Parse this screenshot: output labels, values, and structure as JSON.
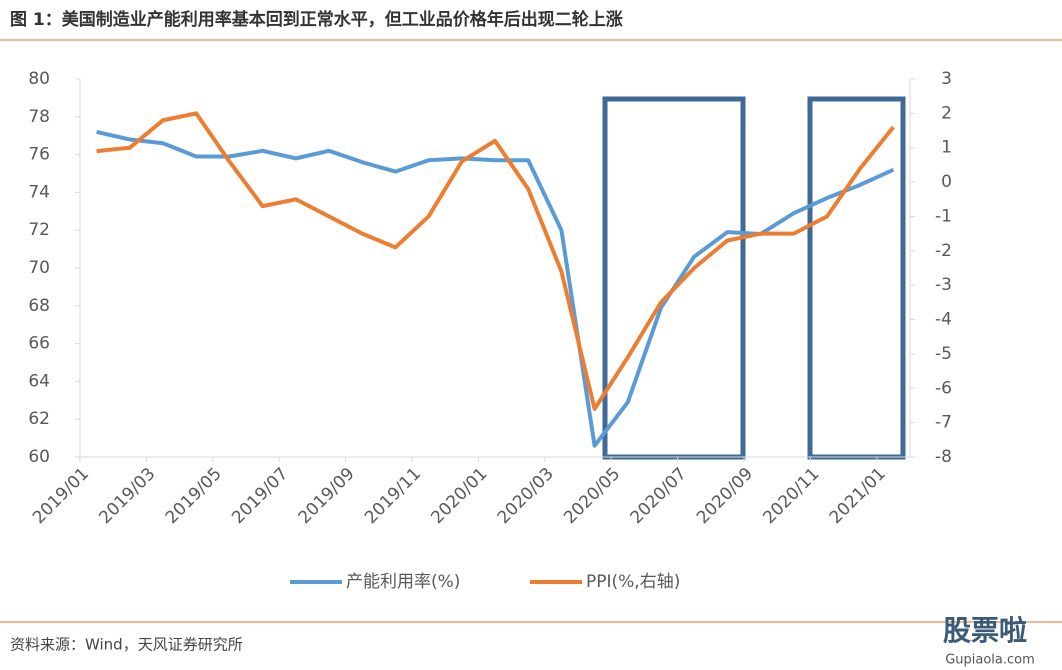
{
  "chart_data": {
    "type": "line",
    "title": "图 1：美国制造业产能利用率基本回到正常水平，但工业品价格年后出现二轮上涨",
    "source": "资料来源：Wind，天风证券研究所",
    "watermark": {
      "brand": "股票啦",
      "site": "Gupiaola.com"
    },
    "categories": [
      "2019/01",
      null,
      "2019/03",
      null,
      "2019/05",
      null,
      "2019/07",
      null,
      "2019/09",
      null,
      "2019/11",
      null,
      "2020/01",
      null,
      "2020/03",
      null,
      "2020/05",
      null,
      "2020/07",
      null,
      "2020/09",
      null,
      "2020/11",
      null,
      "2021/01"
    ],
    "series": [
      {
        "name": "产能利用率(%)",
        "color": "#5b9bd5",
        "axis": "y",
        "values": [
          77.2,
          76.8,
          76.6,
          75.9,
          75.9,
          76.2,
          75.8,
          76.2,
          75.6,
          75.1,
          75.7,
          75.8,
          75.7,
          75.7,
          72.0,
          60.6,
          62.9,
          67.9,
          70.6,
          71.9,
          71.8,
          72.9,
          73.7,
          74.4,
          75.2
        ]
      },
      {
        "name": "PPI(%,右轴)",
        "color": "#ed7d31",
        "axis": "y2",
        "values": [
          0.9,
          1.0,
          1.8,
          2.0,
          0.6,
          -0.7,
          -0.5,
          -1.0,
          -1.5,
          -1.9,
          -1.0,
          0.6,
          1.2,
          -0.2,
          -2.6,
          -6.6,
          -5.1,
          -3.5,
          -2.5,
          -1.7,
          -1.5,
          -1.5,
          -1.0,
          0.4,
          1.6
        ]
      }
    ],
    "ylim": [
      60,
      80
    ],
    "yticks": [
      60,
      62,
      64,
      66,
      68,
      70,
      72,
      74,
      76,
      78,
      80
    ],
    "y2lim": [
      -8,
      3
    ],
    "y2ticks": [
      -8,
      -7,
      -6,
      -5,
      -4,
      -3,
      -2,
      -1,
      0,
      1,
      2,
      3
    ],
    "grid": false,
    "legend": "bottom"
  }
}
